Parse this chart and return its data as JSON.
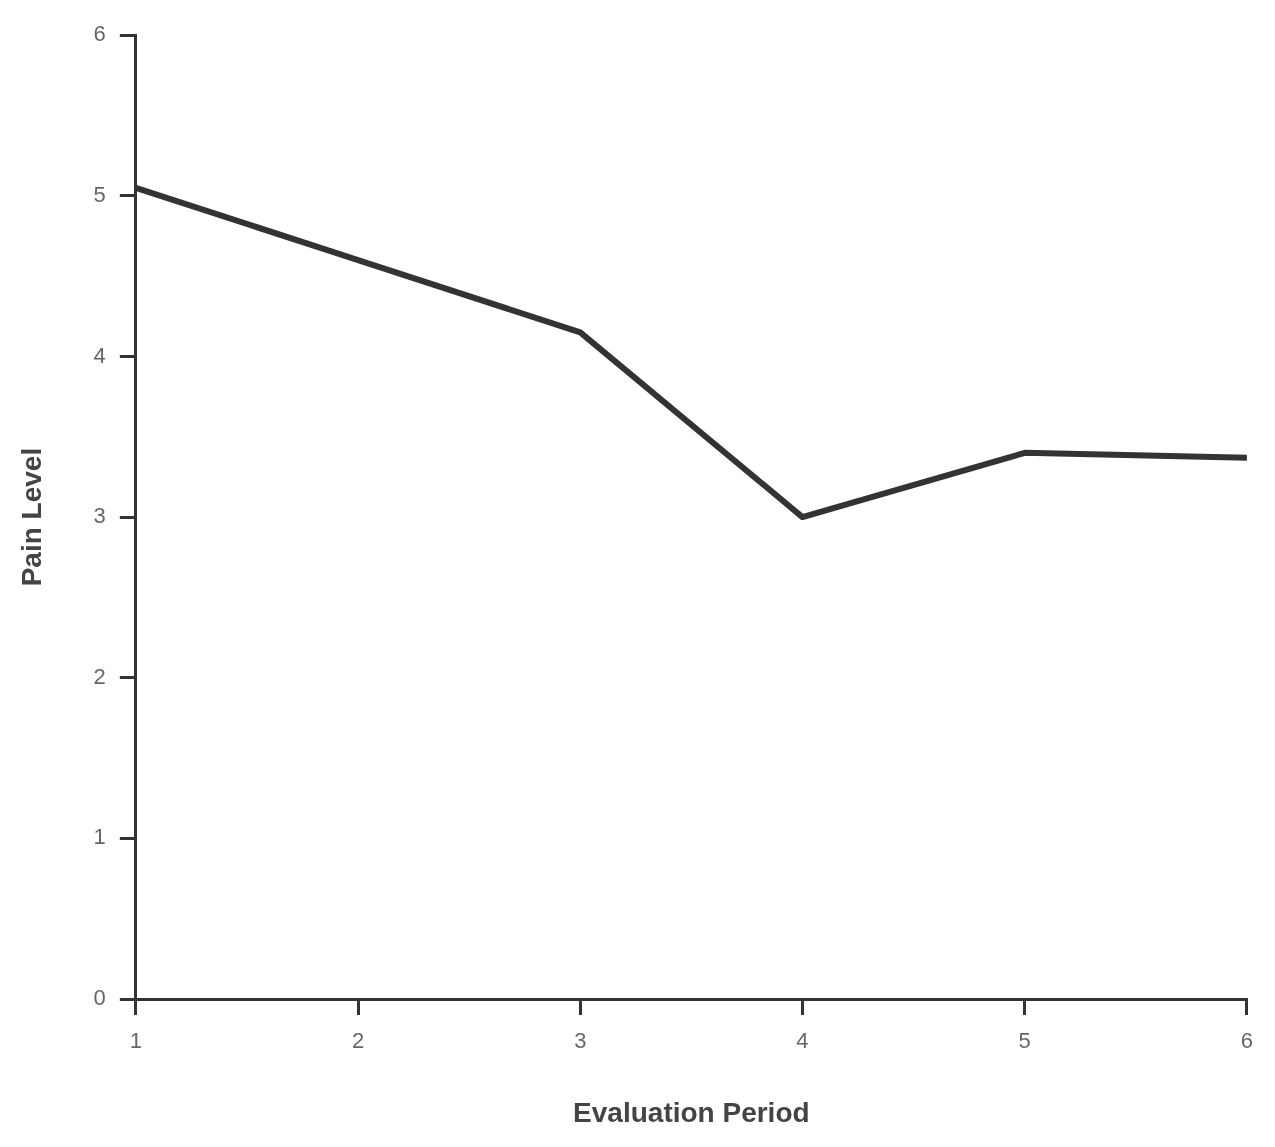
{
  "chart_data": {
    "type": "line",
    "xlabel": "Evaluation Period",
    "ylabel": "Pain Level",
    "x": [
      1,
      2,
      3,
      4,
      5,
      6
    ],
    "series": [
      {
        "color": "#333333",
        "values": [
          5.05,
          4.6,
          4.15,
          3.0,
          3.4,
          3.37
        ]
      }
    ],
    "xlim": [
      1,
      6
    ],
    "xticks": [
      1,
      2,
      3,
      4,
      5,
      6
    ],
    "ylim": [
      0,
      6
    ],
    "yticks": [
      0,
      1,
      2,
      3,
      4,
      5,
      6
    ],
    "grid": false,
    "legend": false,
    "marker": "none",
    "line_style": "solid"
  }
}
